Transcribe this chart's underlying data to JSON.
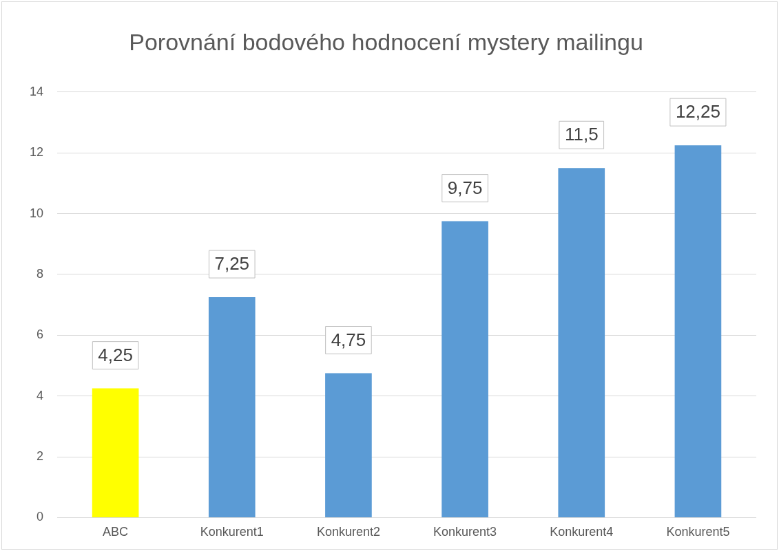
{
  "chart_data": {
    "type": "bar",
    "title": "Porovnání bodového hodnocení mystery mailingu",
    "categories": [
      "ABC",
      "Konkurent1",
      "Konkurent2",
      "Konkurent3",
      "Konkurent4",
      "Konkurent5"
    ],
    "values": [
      4.25,
      7.25,
      4.75,
      9.75,
      11.5,
      12.25
    ],
    "colors": [
      "#ffff00",
      "#5b9bd5",
      "#5b9bd5",
      "#5b9bd5",
      "#5b9bd5",
      "#5b9bd5"
    ],
    "value_labels": [
      "4,25",
      "7,25",
      "4,75",
      "9,75",
      "11,5",
      "12,25"
    ],
    "ylim": [
      0,
      14
    ],
    "yticks": [
      0,
      2,
      4,
      6,
      8,
      10,
      12,
      14
    ],
    "grid": "y"
  }
}
